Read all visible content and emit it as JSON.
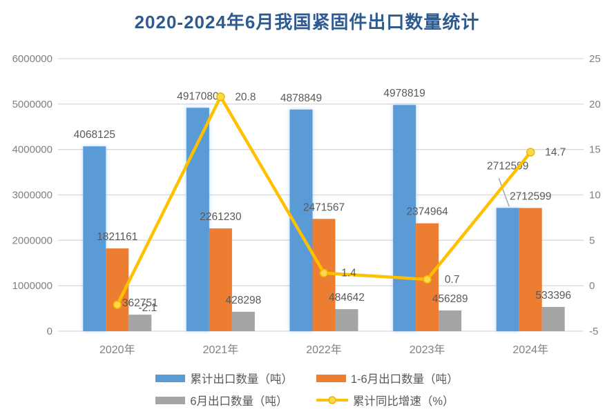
{
  "colors": {
    "title": "#2E5B8F",
    "axis_label": "#7F7F7F",
    "data_label": "#595959",
    "grid": "#D9D9D9",
    "leader_line": "#A6A6A6",
    "background": "#FFFFFF",
    "marker_fill": "#FFD94D",
    "marker_stroke": "#EFB300"
  },
  "chart_data": {
    "type": "combo",
    "title": "2020-2024年6月我国紧固件出口数量统计",
    "categories": [
      "2020年",
      "2021年",
      "2022年",
      "2023年",
      "2024年"
    ],
    "series": [
      {
        "id": "cumulative-export-volume",
        "name": "累计出口数量（吨）",
        "type": "bar",
        "color": "#5B9BD5",
        "axis": "left",
        "values": [
          4068125,
          4917080,
          4878849,
          4978819,
          2712599
        ]
      },
      {
        "id": "jan-to-jun-export-volume",
        "name": "1-6月出口数量（吨）",
        "type": "bar",
        "color": "#ED7D31",
        "axis": "left",
        "values": [
          1821161,
          2261230,
          2471567,
          2374964,
          2712599
        ]
      },
      {
        "id": "june-export-volume",
        "name": "6月出口数量（吨）",
        "type": "bar",
        "color": "#A5A5A5",
        "axis": "left",
        "values": [
          362751,
          428298,
          484642,
          456289,
          533396
        ]
      },
      {
        "id": "cumulative-yoy-growth",
        "name": "累计同比增速（%）",
        "type": "line",
        "color": "#FFC000",
        "axis": "right",
        "values": [
          -2.1,
          20.8,
          1.4,
          0.7,
          14.7
        ]
      }
    ],
    "left_axis": {
      "min": 0,
      "max": 6000000,
      "step": 1000000,
      "ticks": [
        "0",
        "1000000",
        "2000000",
        "3000000",
        "4000000",
        "5000000",
        "6000000"
      ]
    },
    "right_axis": {
      "min": -5,
      "max": 25,
      "step": 5,
      "ticks": [
        "-5",
        "0",
        "5",
        "10",
        "15",
        "20",
        "25"
      ]
    },
    "grid": true,
    "legend_position": "bottom"
  }
}
